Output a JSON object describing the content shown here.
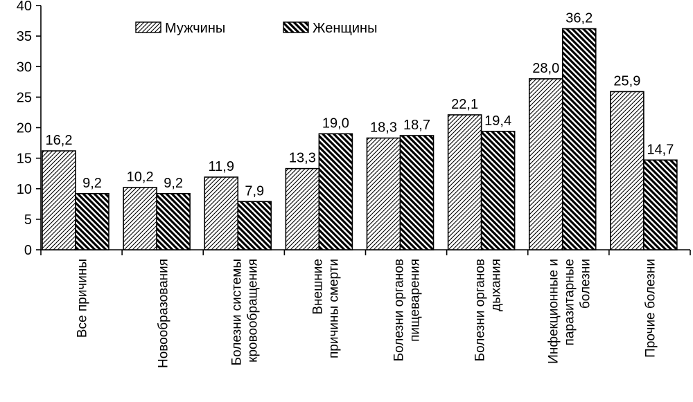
{
  "chart_data": {
    "type": "bar",
    "title": "",
    "xlabel": "",
    "ylabel": "",
    "ylim": [
      0,
      40
    ],
    "yticks": [
      0,
      5,
      10,
      15,
      20,
      25,
      30,
      35,
      40
    ],
    "grid": false,
    "legend_position": "top-center",
    "categories": [
      [
        "Все причины"
      ],
      [
        "Новообразования"
      ],
      [
        "Болезни системы",
        "кровообращения"
      ],
      [
        "Внешние",
        "причины смерти"
      ],
      [
        "Болезни органов",
        "пищеварения"
      ],
      [
        "Болезни органов",
        "дыхания"
      ],
      [
        "Инфекционные и",
        "паразитарные",
        "болезни"
      ],
      [
        "Прочие болезни"
      ]
    ],
    "series": [
      {
        "name": "Мужчины",
        "pattern": "light-diagonal-hatch",
        "values": [
          16.2,
          10.2,
          11.9,
          13.3,
          18.3,
          22.1,
          28.0,
          25.9
        ],
        "labels": [
          "16,2",
          "10,2",
          "11,9",
          "13,3",
          "18,3",
          "22,1",
          "28,0",
          "25,9"
        ]
      },
      {
        "name": "Женщины",
        "pattern": "heavy-diagonal-hatch",
        "values": [
          9.2,
          9.2,
          7.9,
          19.0,
          18.7,
          19.4,
          36.2,
          14.7
        ],
        "labels": [
          "9,2",
          "9,2",
          "7,9",
          "19,0",
          "18,7",
          "19,4",
          "36,2",
          "14,7"
        ]
      }
    ],
    "colors": {
      "stroke": "#000000",
      "background": "#ffffff"
    }
  }
}
